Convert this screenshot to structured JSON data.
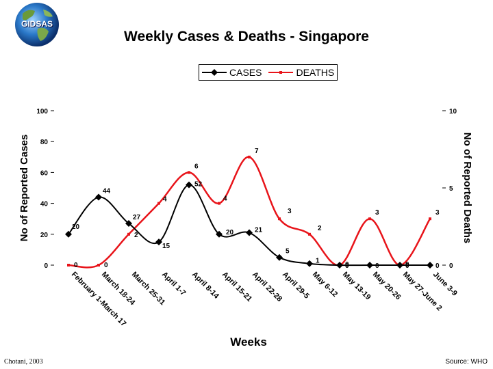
{
  "logo": {
    "text": "GIDSAS"
  },
  "chart_data": {
    "type": "line",
    "title": "Weekly Cases & Deaths - Singapore",
    "xlabel": "Weeks",
    "ylabel": "No of Reported Cases",
    "y2label": "No of Reported Deaths",
    "ylim": [
      0,
      100
    ],
    "y2lim": [
      0,
      10
    ],
    "yticks": [
      0,
      20,
      40,
      60,
      80,
      100
    ],
    "y2ticks": [
      0,
      5,
      10
    ],
    "legend": "top",
    "categories": [
      "February 1-March 17",
      "March 18-24",
      "March 25-31",
      "April 1-7",
      "April 8-14",
      "April 15-21",
      "April 22-28",
      "April 29-5",
      "May 6-12",
      "May 13-19",
      "May 20-26",
      "May 27-June 2",
      "June 3-9"
    ],
    "series": [
      {
        "name": "CASES",
        "axis": "left",
        "color": "#000000",
        "values": [
          20,
          44,
          27,
          15,
          52,
          20,
          21,
          5,
          1,
          0,
          0,
          0,
          0
        ],
        "labels": [
          "20",
          "44",
          "27",
          "15",
          "52",
          "20",
          "21",
          "5",
          "1",
          "0",
          "0",
          "0",
          "0"
        ]
      },
      {
        "name": "DEATHS",
        "axis": "right",
        "color": "#e8141a",
        "values": [
          0,
          0,
          2,
          4,
          6,
          4,
          7,
          3,
          2,
          0,
          3,
          0,
          3
        ],
        "labels": [
          "0",
          "0",
          "2",
          "4",
          "6",
          "4",
          "7",
          "3",
          "2",
          "0",
          "3",
          "0",
          "3"
        ]
      }
    ]
  },
  "footer": {
    "left": "Chotani, 2003",
    "right": "Source: WHO"
  }
}
